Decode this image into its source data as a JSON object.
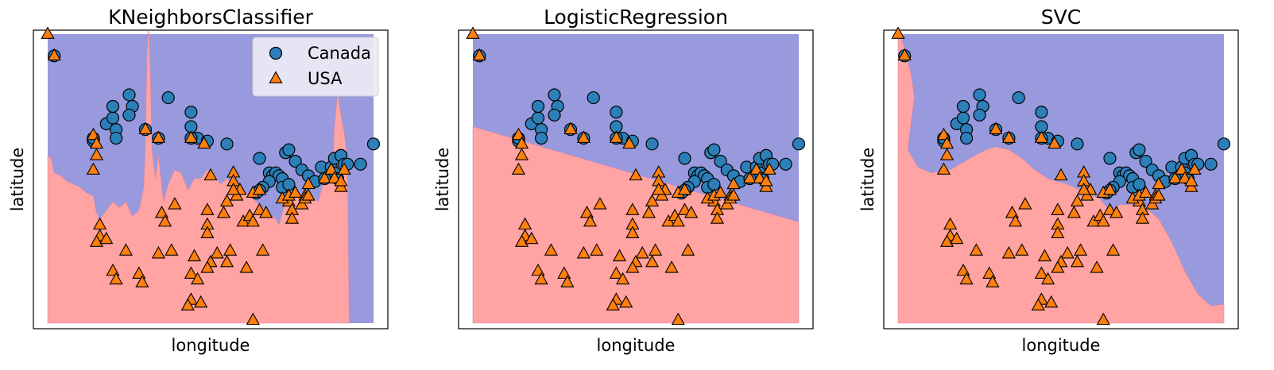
{
  "colors": {
    "region_canada": "#9999dd",
    "region_usa": "#ffa3a3",
    "canada_marker": "#2c7fb8",
    "usa_marker": "#ff7f0e",
    "marker_edge": "#000000",
    "frame": "#000000"
  },
  "legend": {
    "canada": "Canada",
    "usa": "USA",
    "placement": "upper-right of first panel"
  },
  "chart_data": [
    {
      "type": "scatter",
      "title": "KNeighborsClassifier",
      "xlabel": "longitude",
      "ylabel": "latitude",
      "ticks": false,
      "background": "decision-regions",
      "boundary": {
        "kind": "jagged",
        "points": [
          [
            0.0,
            0.58
          ],
          [
            0.01,
            0.57
          ],
          [
            0.02,
            0.52
          ],
          [
            0.04,
            0.51
          ],
          [
            0.06,
            0.49
          ],
          [
            0.08,
            0.48
          ],
          [
            0.1,
            0.47
          ],
          [
            0.12,
            0.45
          ],
          [
            0.14,
            0.44
          ],
          [
            0.15,
            0.38
          ],
          [
            0.16,
            0.36
          ],
          [
            0.18,
            0.39
          ],
          [
            0.2,
            0.42
          ],
          [
            0.22,
            0.4
          ],
          [
            0.24,
            0.42
          ],
          [
            0.26,
            0.37
          ],
          [
            0.28,
            0.39
          ],
          [
            0.295,
            0.47
          ],
          [
            0.3,
            0.62
          ],
          [
            0.305,
            0.93
          ],
          [
            0.31,
            1.03
          ],
          [
            0.315,
            0.86
          ],
          [
            0.32,
            0.6
          ],
          [
            0.33,
            0.5
          ],
          [
            0.34,
            0.58
          ],
          [
            0.355,
            0.42
          ],
          [
            0.37,
            0.48
          ],
          [
            0.39,
            0.53
          ],
          [
            0.41,
            0.52
          ],
          [
            0.43,
            0.46
          ],
          [
            0.45,
            0.5
          ],
          [
            0.47,
            0.5
          ],
          [
            0.49,
            0.53
          ],
          [
            0.51,
            0.52
          ],
          [
            0.53,
            0.48
          ],
          [
            0.55,
            0.5
          ],
          [
            0.57,
            0.48
          ],
          [
            0.6,
            0.46
          ],
          [
            0.62,
            0.44
          ],
          [
            0.64,
            0.42
          ],
          [
            0.66,
            0.4
          ],
          [
            0.68,
            0.38
          ],
          [
            0.7,
            0.36
          ],
          [
            0.71,
            0.34
          ],
          [
            0.72,
            0.38
          ],
          [
            0.73,
            0.42
          ],
          [
            0.74,
            0.43
          ],
          [
            0.76,
            0.44
          ],
          [
            0.79,
            0.45
          ],
          [
            0.81,
            0.44
          ],
          [
            0.83,
            0.42
          ],
          [
            0.84,
            0.46
          ],
          [
            0.85,
            0.5
          ],
          [
            0.86,
            0.55
          ],
          [
            0.87,
            0.6
          ],
          [
            0.875,
            0.55
          ],
          [
            0.88,
            0.68
          ],
          [
            0.89,
            0.8
          ],
          [
            0.9,
            0.72
          ],
          [
            0.91,
            0.66
          ],
          [
            0.92,
            0.56
          ],
          [
            0.925,
            0.0
          ]
        ]
      },
      "canada_points": [
        [
          0.02,
          0.925
        ],
        [
          0.25,
          0.79
        ],
        [
          0.26,
          0.75
        ],
        [
          0.25,
          0.72
        ],
        [
          0.37,
          0.78
        ],
        [
          0.44,
          0.73
        ],
        [
          0.18,
          0.69
        ],
        [
          0.2,
          0.71
        ],
        [
          0.21,
          0.67
        ],
        [
          0.21,
          0.64
        ],
        [
          0.14,
          0.63
        ],
        [
          0.14,
          0.64
        ],
        [
          0.3,
          0.67
        ],
        [
          0.34,
          0.64
        ],
        [
          0.46,
          0.64
        ],
        [
          0.44,
          0.64
        ],
        [
          0.44,
          0.68
        ],
        [
          0.49,
          0.63
        ],
        [
          0.55,
          0.62
        ],
        [
          0.65,
          0.57
        ],
        [
          0.73,
          0.59
        ],
        [
          0.74,
          0.6
        ],
        [
          0.76,
          0.56
        ],
        [
          0.78,
          0.53
        ],
        [
          0.8,
          0.51
        ],
        [
          0.82,
          0.49
        ],
        [
          0.84,
          0.54
        ],
        [
          0.87,
          0.54
        ],
        [
          0.88,
          0.57
        ],
        [
          0.9,
          0.58
        ],
        [
          0.9,
          0.58
        ],
        [
          0.91,
          0.55
        ],
        [
          0.92,
          0.55
        ],
        [
          0.68,
          0.52
        ],
        [
          0.69,
          0.51
        ],
        [
          0.7,
          0.52
        ],
        [
          0.71,
          0.51
        ],
        [
          0.72,
          0.5
        ],
        [
          0.72,
          0.47
        ],
        [
          0.74,
          0.48
        ],
        [
          0.68,
          0.49
        ],
        [
          0.66,
          0.47
        ],
        [
          0.65,
          0.46
        ],
        [
          0.64,
          0.45
        ],
        [
          0.88,
          0.52
        ],
        [
          0.89,
          0.5
        ],
        [
          0.85,
          0.5
        ],
        [
          0.96,
          0.55
        ],
        [
          1.0,
          0.62
        ],
        [
          0.2,
          0.75
        ]
      ],
      "usa_points": [
        [
          0.0,
          1.0
        ],
        [
          0.02,
          0.925
        ],
        [
          0.14,
          0.65
        ],
        [
          0.15,
          0.62
        ],
        [
          0.15,
          0.58
        ],
        [
          0.14,
          0.53
        ],
        [
          0.3,
          0.67
        ],
        [
          0.34,
          0.64
        ],
        [
          0.44,
          0.64
        ],
        [
          0.48,
          0.62
        ],
        [
          0.5,
          0.51
        ],
        [
          0.57,
          0.52
        ],
        [
          0.57,
          0.49
        ],
        [
          0.59,
          0.46
        ],
        [
          0.58,
          0.44
        ],
        [
          0.55,
          0.42
        ],
        [
          0.39,
          0.41
        ],
        [
          0.35,
          0.38
        ],
        [
          0.36,
          0.35
        ],
        [
          0.49,
          0.39
        ],
        [
          0.49,
          0.34
        ],
        [
          0.49,
          0.31
        ],
        [
          0.54,
          0.38
        ],
        [
          0.6,
          0.35
        ],
        [
          0.62,
          0.37
        ],
        [
          0.63,
          0.35
        ],
        [
          0.65,
          0.39
        ],
        [
          0.67,
          0.38
        ],
        [
          0.74,
          0.42
        ],
        [
          0.75,
          0.39
        ],
        [
          0.75,
          0.36
        ],
        [
          0.78,
          0.41
        ],
        [
          0.79,
          0.44
        ],
        [
          0.8,
          0.48
        ],
        [
          0.85,
          0.5
        ],
        [
          0.87,
          0.53
        ],
        [
          0.88,
          0.5
        ],
        [
          0.9,
          0.47
        ],
        [
          0.9,
          0.49
        ],
        [
          0.91,
          0.53
        ],
        [
          0.57,
          0.46
        ],
        [
          0.63,
          0.45
        ],
        [
          0.72,
          0.43
        ],
        [
          0.74,
          0.44
        ],
        [
          0.79,
          0.43
        ],
        [
          0.76,
          0.45
        ],
        [
          0.65,
          0.46
        ],
        [
          0.16,
          0.34
        ],
        [
          0.16,
          0.3
        ],
        [
          0.15,
          0.28
        ],
        [
          0.18,
          0.29
        ],
        [
          0.24,
          0.25
        ],
        [
          0.34,
          0.24
        ],
        [
          0.38,
          0.25
        ],
        [
          0.45,
          0.23
        ],
        [
          0.52,
          0.24
        ],
        [
          0.56,
          0.25
        ],
        [
          0.66,
          0.25
        ],
        [
          0.5,
          0.21
        ],
        [
          0.55,
          0.21
        ],
        [
          0.61,
          0.19
        ],
        [
          0.49,
          0.19
        ],
        [
          0.2,
          0.18
        ],
        [
          0.21,
          0.15
        ],
        [
          0.28,
          0.17
        ],
        [
          0.29,
          0.14
        ],
        [
          0.44,
          0.17
        ],
        [
          0.46,
          0.15
        ],
        [
          0.44,
          0.08
        ],
        [
          0.43,
          0.06
        ],
        [
          0.47,
          0.07
        ],
        [
          0.63,
          0.01
        ],
        [
          0.8,
          0.44
        ]
      ]
    },
    {
      "type": "scatter",
      "title": "LogisticRegression",
      "xlabel": "longitude",
      "ylabel": "latitude",
      "ticks": false,
      "background": "decision-regions",
      "boundary": {
        "kind": "linear",
        "points": [
          [
            0.0,
            0.68
          ],
          [
            1.0,
            0.35
          ]
        ]
      },
      "canada_points": "same as first panel",
      "usa_points": "same as first panel"
    },
    {
      "type": "scatter",
      "title": "SVC",
      "xlabel": "longitude",
      "ylabel": "latitude",
      "ticks": false,
      "background": "decision-regions",
      "boundary": {
        "kind": "smooth",
        "points": [
          [
            0.0,
            1.02
          ],
          [
            0.02,
            0.95
          ],
          [
            0.04,
            0.86
          ],
          [
            0.05,
            0.78
          ],
          [
            0.04,
            0.7
          ],
          [
            0.03,
            0.6
          ],
          [
            0.06,
            0.54
          ],
          [
            0.1,
            0.52
          ],
          [
            0.16,
            0.53
          ],
          [
            0.22,
            0.57
          ],
          [
            0.27,
            0.6
          ],
          [
            0.3,
            0.61
          ],
          [
            0.34,
            0.6
          ],
          [
            0.38,
            0.57
          ],
          [
            0.42,
            0.53
          ],
          [
            0.46,
            0.5
          ],
          [
            0.52,
            0.48
          ],
          [
            0.58,
            0.45
          ],
          [
            0.62,
            0.43
          ],
          [
            0.64,
            0.4
          ],
          [
            0.65,
            0.38
          ],
          [
            0.68,
            0.41
          ],
          [
            0.72,
            0.41
          ],
          [
            0.76,
            0.4
          ],
          [
            0.8,
            0.36
          ],
          [
            0.84,
            0.28
          ],
          [
            0.88,
            0.18
          ],
          [
            0.92,
            0.1
          ],
          [
            0.96,
            0.06
          ],
          [
            1.0,
            0.065
          ]
        ]
      },
      "canada_points": "same as first panel",
      "usa_points": "same as first panel"
    }
  ]
}
